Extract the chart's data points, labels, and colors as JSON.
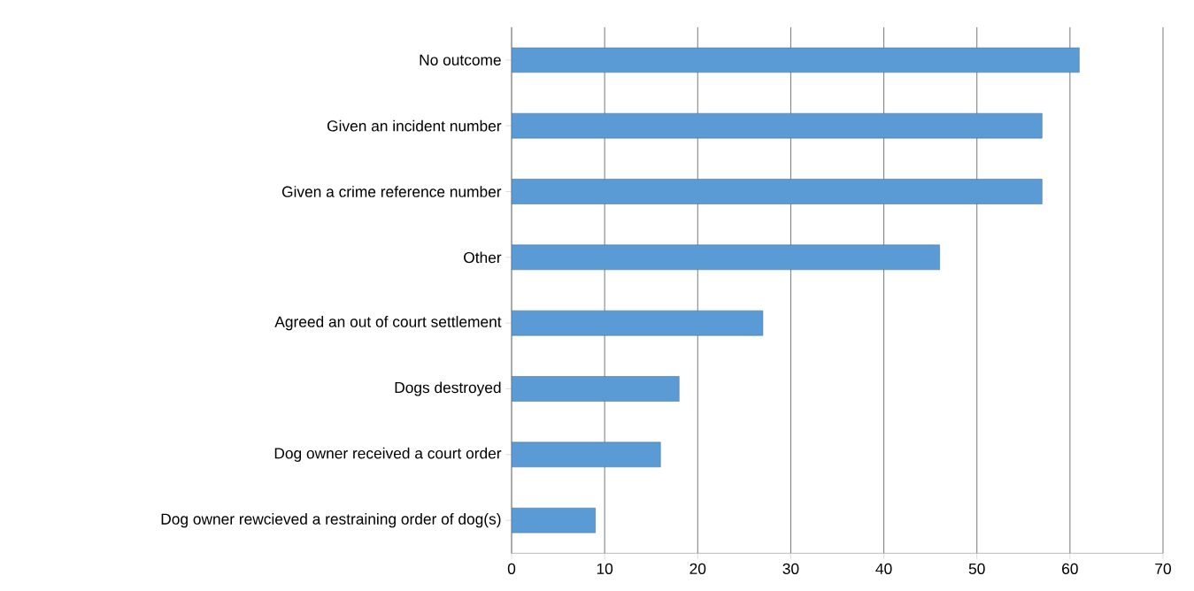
{
  "chart_data": {
    "type": "bar",
    "orientation": "horizontal",
    "categories": [
      "No outcome",
      "Given an incident number",
      "Given a crime reference number",
      "Other",
      "Agreed an out of court settlement",
      "Dogs destroyed",
      "Dog owner received a court order",
      "Dog owner rewcieved a restraining order of dog(s)"
    ],
    "values": [
      61,
      57,
      57,
      46,
      27,
      18,
      16,
      9
    ],
    "color": "#5b9bd5",
    "xlim": [
      0,
      70
    ],
    "xticks": [
      0,
      10,
      20,
      30,
      40,
      50,
      60,
      70
    ],
    "grid": "x"
  }
}
